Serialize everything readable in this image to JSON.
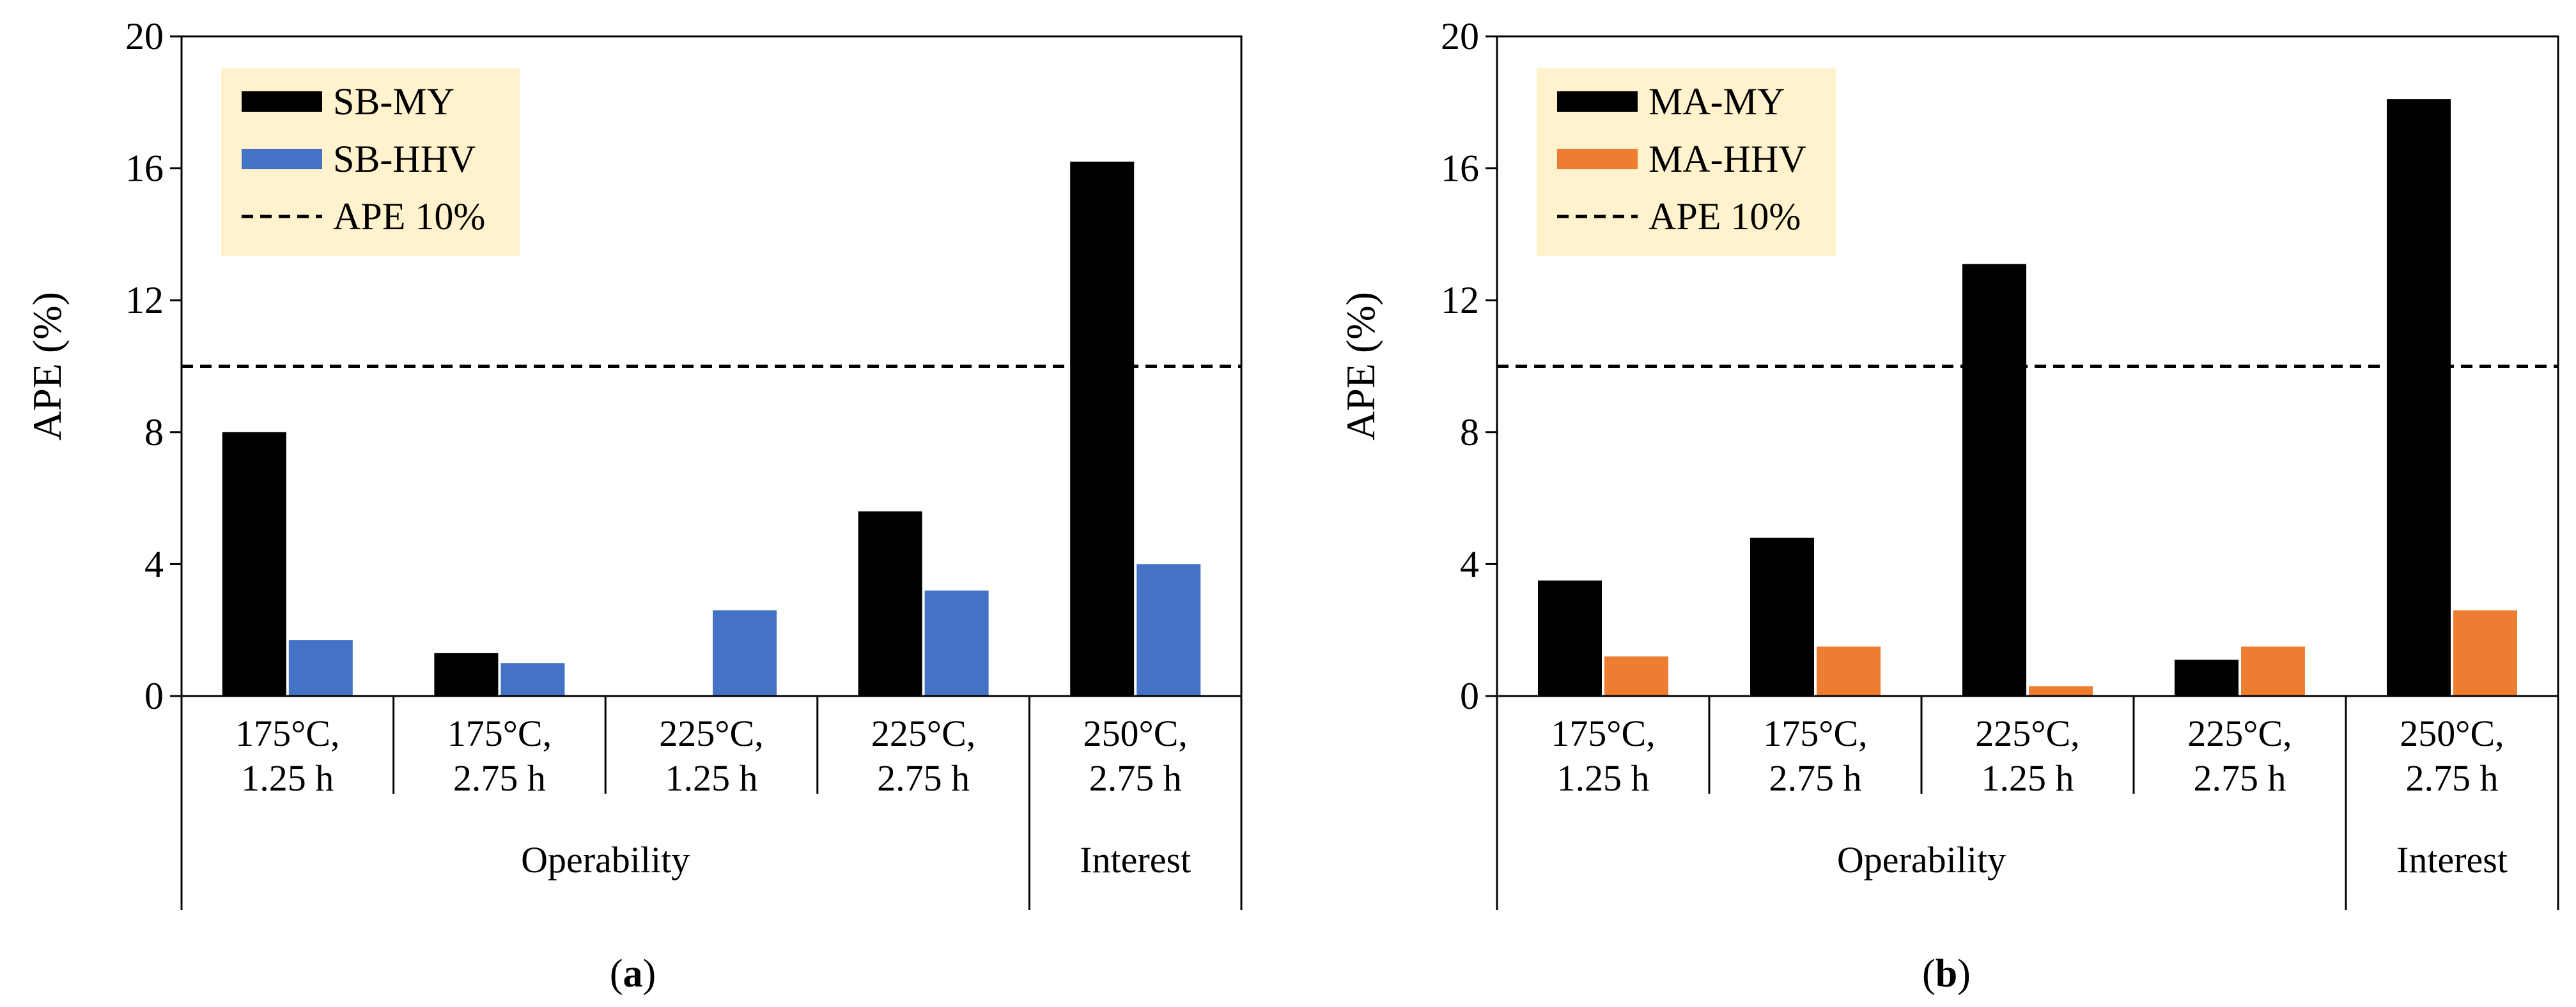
{
  "chart_data": [
    {
      "type": "bar",
      "caption": "(a)",
      "caption_letter": "a",
      "ylabel": "APE (%)",
      "ylim": [
        0,
        20
      ],
      "yticks": [
        0,
        4,
        8,
        12,
        16,
        20
      ],
      "categories": [
        [
          "175°C,",
          "1.25 h"
        ],
        [
          "175°C,",
          "2.75 h"
        ],
        [
          "225°C,",
          "1.25 h"
        ],
        [
          "225°C,",
          "2.75 h"
        ],
        [
          "250°C,",
          "2.75 h"
        ]
      ],
      "groups": [
        {
          "label": "Operability",
          "span": [
            0,
            4
          ]
        },
        {
          "label": "Interest",
          "span": [
            4,
            5
          ]
        }
      ],
      "series": [
        {
          "name": "SB-MY",
          "color": "#000000",
          "values": [
            8.0,
            1.3,
            0.0,
            5.6,
            16.2
          ]
        },
        {
          "name": "SB-HHV",
          "color": "#4472C4",
          "values": [
            1.7,
            1.0,
            2.6,
            3.2,
            4.0
          ]
        }
      ],
      "reference_line": {
        "name": "APE 10%",
        "value": 10
      },
      "legend": {
        "position": "top-left",
        "background": "#FFF2CC"
      }
    },
    {
      "type": "bar",
      "caption": "(b)",
      "caption_letter": "b",
      "ylabel": "APE (%)",
      "ylim": [
        0,
        20
      ],
      "yticks": [
        0,
        4,
        8,
        12,
        16,
        20
      ],
      "categories": [
        [
          "175°C,",
          "1.25 h"
        ],
        [
          "175°C,",
          "2.75 h"
        ],
        [
          "225°C,",
          "1.25 h"
        ],
        [
          "225°C,",
          "2.75 h"
        ],
        [
          "250°C,",
          "2.75 h"
        ]
      ],
      "groups": [
        {
          "label": "Operability",
          "span": [
            0,
            4
          ]
        },
        {
          "label": "Interest",
          "span": [
            4,
            5
          ]
        }
      ],
      "series": [
        {
          "name": "MA-MY",
          "color": "#000000",
          "values": [
            3.5,
            4.8,
            13.1,
            1.1,
            18.1
          ]
        },
        {
          "name": "MA-HHV",
          "color": "#ED7D31",
          "values": [
            1.2,
            1.5,
            0.3,
            1.5,
            2.6
          ]
        }
      ],
      "reference_line": {
        "name": "APE 10%",
        "value": 10
      },
      "legend": {
        "position": "top-left",
        "background": "#FFF2CC"
      }
    }
  ]
}
